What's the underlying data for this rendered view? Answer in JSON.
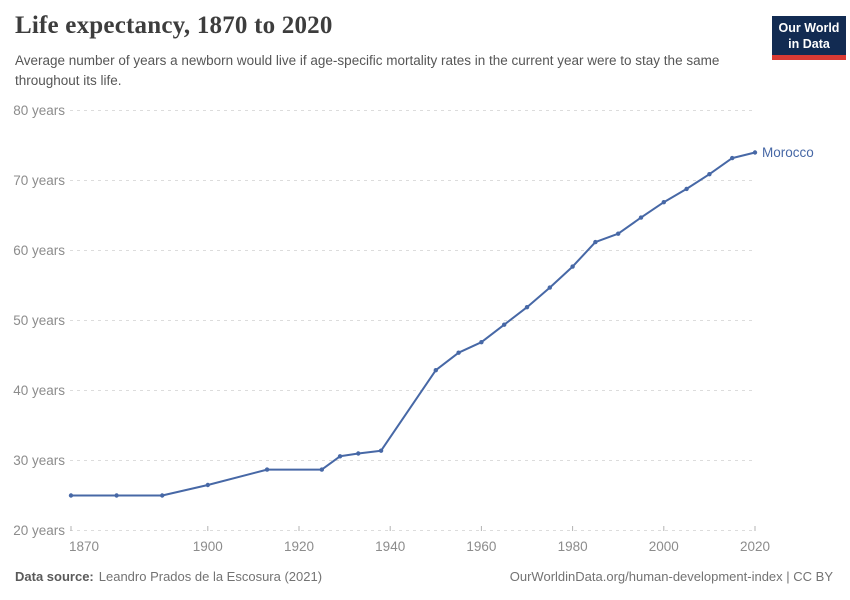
{
  "header": {
    "title": "Life expectancy, 1870 to 2020",
    "subtitle": "Average number of years a newborn would live if age-specific mortality rates in the current year were to stay the same throughout its life."
  },
  "logo": {
    "line1": "Our World",
    "line2": "in Data"
  },
  "chart_data": {
    "type": "line",
    "title": "Life expectancy, 1870 to 2020",
    "xlabel": "",
    "ylabel": "",
    "ytick_unit": "years",
    "x": [
      1870,
      1880,
      1890,
      1900,
      1913,
      1925,
      1929,
      1933,
      1938,
      1950,
      1955,
      1960,
      1965,
      1970,
      1975,
      1980,
      1985,
      1990,
      1995,
      2000,
      2005,
      2010,
      2015,
      2020
    ],
    "series": [
      {
        "name": "Morocco",
        "values": [
          25.0,
          25.0,
          25.0,
          26.5,
          28.7,
          28.7,
          30.6,
          31.0,
          31.4,
          42.9,
          45.4,
          46.9,
          49.4,
          51.9,
          54.7,
          57.7,
          61.2,
          62.4,
          64.7,
          66.9,
          68.8,
          70.9,
          73.2,
          74.0
        ]
      }
    ],
    "xticks": [
      1870,
      1900,
      1920,
      1940,
      1960,
      1980,
      2000,
      2020
    ],
    "yticks": [
      20,
      30,
      40,
      50,
      60,
      70,
      80
    ],
    "xlim": [
      1870,
      2020
    ],
    "ylim": [
      20,
      80
    ],
    "grid": "horizontal-dashed",
    "legend_position": "end-of-line-label"
  },
  "footer": {
    "source_label": "Data source:",
    "source_text": "Leandro Prados de la Escosura (2021)",
    "right_text": "OurWorldinData.org/human-development-index | CC BY"
  },
  "colors": {
    "line": "#4768a6",
    "grid": "#dcdcdc",
    "tick_mark": "#b3b3b3",
    "tick_label": "#8c8c8c",
    "logo_bg": "#122b52",
    "logo_red": "#d93a34"
  }
}
